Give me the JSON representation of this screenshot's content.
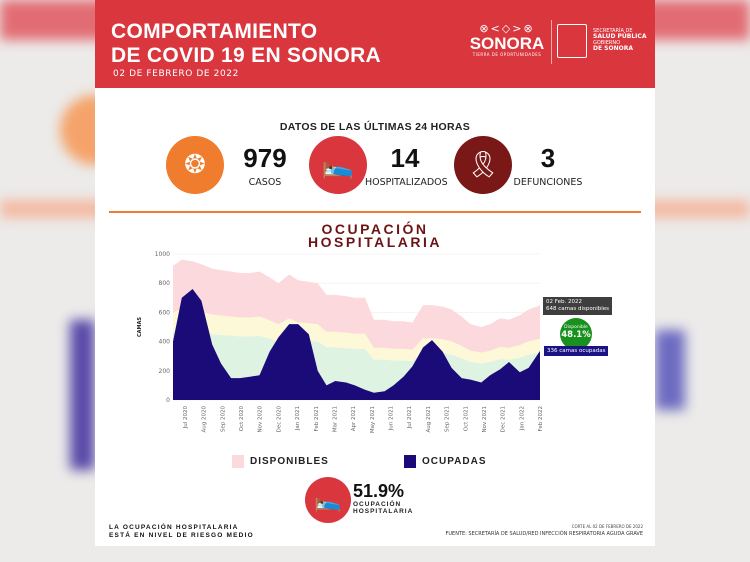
{
  "header": {
    "title_line1": "COMPORTAMIENTO",
    "title_line2": "DE COVID 19 EN SONORA",
    "date": "02 DE FEBRERO DE 2022",
    "logo": {
      "name": "SONORA",
      "tagline": "TIERRA DE OPORTUNIDADES"
    },
    "secretaria": {
      "line1": "SECRETARÍA DE",
      "line2": "SALUD PÚBLICA",
      "line3": "GOBIERNO",
      "line4": "DE SONORA"
    }
  },
  "subtitle": "DATOS DE LAS ÚLTIMAS 24 HORAS",
  "stats": [
    {
      "value": "979",
      "label": "CASOS",
      "icon": "virus-magnifier-icon",
      "color": "#f07c2d"
    },
    {
      "value": "14",
      "label": "HOSPITALIZADOS",
      "icon": "hospital-bed-icon",
      "color": "#d9363e"
    },
    {
      "value": "3",
      "label": "DEFUNCIONES",
      "icon": "ribbon-icon",
      "color": "#7a1717"
    }
  ],
  "chart_title_line1": "OCUPACIÓN",
  "chart_title_line2": "HOSPITALARIA",
  "chart_data": {
    "type": "area",
    "ylabel": "CAMAS",
    "ylim": [
      0,
      1000
    ],
    "yticks": [
      0,
      200,
      400,
      600,
      800,
      1000
    ],
    "xtick_labels": [
      "Jul 2020",
      "Aug 2020",
      "Sep 2020",
      "Oct 2020",
      "Nov 2020",
      "Dec 2020",
      "Jan 2021",
      "Feb 2021",
      "Mar 2021",
      "Apr 2021",
      "May 2021",
      "Jun 2021",
      "Jul 2021",
      "Aug 2021",
      "Sep 2021",
      "Oct 2021",
      "Nov 2021",
      "Dec 2021",
      "Jan 2022",
      "Feb 2022"
    ],
    "x": [
      "2020-07-01",
      "2020-07-15",
      "2020-08-01",
      "2020-08-15",
      "2020-09-01",
      "2020-09-15",
      "2020-10-01",
      "2020-10-15",
      "2020-11-01",
      "2020-11-15",
      "2020-12-01",
      "2020-12-15",
      "2021-01-01",
      "2021-01-15",
      "2021-02-01",
      "2021-02-15",
      "2021-03-01",
      "2021-03-15",
      "2021-04-01",
      "2021-04-15",
      "2021-05-01",
      "2021-05-15",
      "2021-06-01",
      "2021-06-15",
      "2021-07-01",
      "2021-07-15",
      "2021-08-01",
      "2021-08-15",
      "2021-09-01",
      "2021-09-15",
      "2021-10-01",
      "2021-10-15",
      "2021-11-01",
      "2021-11-15",
      "2021-12-01",
      "2021-12-15",
      "2022-01-01",
      "2022-01-15",
      "2022-02-02"
    ],
    "series": [
      {
        "name": "DISPONIBLES",
        "color": "#fbd9dc",
        "values": [
          920,
          960,
          950,
          930,
          900,
          890,
          880,
          870,
          870,
          880,
          840,
          800,
          860,
          820,
          810,
          800,
          720,
          720,
          710,
          700,
          700,
          550,
          550,
          540,
          540,
          530,
          650,
          650,
          640,
          620,
          570,
          520,
          500,
          520,
          560,
          550,
          580,
          620,
          648
        ]
      },
      {
        "name": "OCUPADAS",
        "color": "#1a0b78",
        "values": [
          400,
          700,
          760,
          680,
          380,
          250,
          150,
          150,
          160,
          170,
          330,
          430,
          520,
          520,
          450,
          200,
          100,
          130,
          120,
          100,
          70,
          50,
          60,
          100,
          160,
          230,
          360,
          410,
          330,
          220,
          150,
          140,
          120,
          170,
          210,
          260,
          190,
          220,
          336
        ]
      }
    ],
    "risk_bands": {
      "green": "#dff3e3",
      "yellow": "#fdf8d7"
    },
    "legend": "bottom",
    "annotations": {
      "date": "02 Feb. 2022",
      "available": "648 camas disponibles",
      "occupied": "336 camas ocupadas",
      "available_label": "Disponible",
      "available_pct": "48.1%"
    }
  },
  "occupancy": {
    "value": "51.9%",
    "label_line1": "OCUPACIÓN",
    "label_line2": "HOSPITALARIA"
  },
  "risk": {
    "line1": "LA OCUPACIÓN HOSPITALARIA",
    "line2": "ESTÁ EN NIVEL DE RIESGO MEDIO"
  },
  "cutoff": "CORTE AL 02 DE FEBRERO DE 2022",
  "source": "FUENTE: SECRETARÍA DE SALUD/RED INFECCIÓN RESPIRATORIA AGUDA GRAVE"
}
